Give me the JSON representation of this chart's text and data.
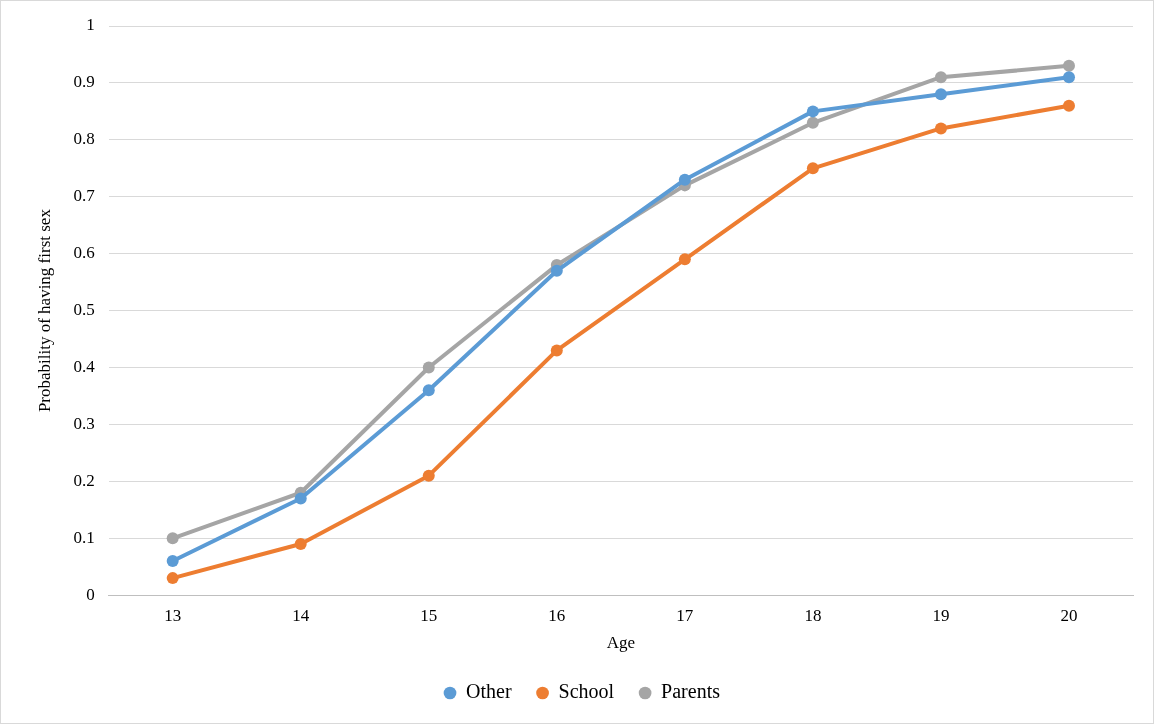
{
  "chart_data": {
    "type": "line",
    "xlabel": "Age",
    "ylabel": "Probability of having first sex",
    "categories": [
      "13",
      "14",
      "15",
      "16",
      "17",
      "18",
      "19",
      "20"
    ],
    "series": [
      {
        "name": "Other",
        "color": "#5b9bd5",
        "values": [
          0.06,
          0.17,
          0.36,
          0.57,
          0.73,
          0.85,
          0.88,
          0.91
        ]
      },
      {
        "name": "School",
        "color": "#ed7d31",
        "values": [
          0.03,
          0.09,
          0.21,
          0.43,
          0.59,
          0.75,
          0.82,
          0.86
        ]
      },
      {
        "name": "Parents",
        "color": "#a5a5a5",
        "values": [
          0.1,
          0.18,
          0.4,
          0.58,
          0.72,
          0.83,
          0.91,
          0.93
        ]
      }
    ],
    "ylim": [
      0,
      1
    ],
    "yticks": [
      0,
      0.1,
      0.2,
      0.3,
      0.4,
      0.5,
      0.6,
      0.7,
      0.8,
      0.9,
      1
    ],
    "grid": "y",
    "legend": "bottom",
    "marker": "circle",
    "line_style": "solid"
  }
}
